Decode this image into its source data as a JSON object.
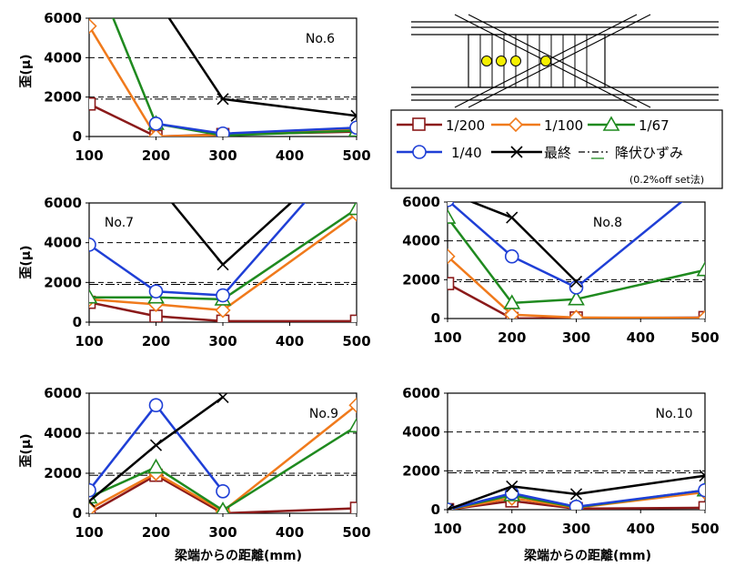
{
  "colors": {
    "s200": "#8b1a1a",
    "s100": "#f07a1c",
    "s67": "#1f8a1f",
    "s40": "#1f3fd6",
    "final": "#000000",
    "yield": "#000000",
    "gauge_fill": "#f5f000"
  },
  "series_labels": [
    "1/200",
    "1/100",
    "1/67",
    "1/40",
    "最終",
    "降伏ひずみ"
  ],
  "legend": {
    "yield_note": "(0.2%off set法)"
  },
  "axis_text": {
    "ylabel": "歪(μ)",
    "xlabel": "梁端からの距離(mm)"
  },
  "chart_data": [
    {
      "type": "line",
      "title": "No.6",
      "x": [
        100,
        200,
        300,
        500
      ],
      "xticks": [
        "100",
        "200",
        "300",
        "400",
        "500"
      ],
      "yticks": [
        "0",
        "2000",
        "4000",
        "6000"
      ],
      "xlim": [
        100,
        500
      ],
      "ylim": [
        0,
        6000
      ],
      "yield_lines": [
        4000,
        2000,
        1900
      ],
      "show_ylabel": true,
      "show_xlabel": false,
      "series": [
        {
          "key": "s200",
          "name": "1/200",
          "values": [
            1650,
            0,
            100,
            250
          ]
        },
        {
          "key": "s100",
          "name": "1/100",
          "values": [
            5600,
            0,
            80,
            350
          ]
        },
        {
          "key": "s67",
          "name": "1/67",
          "values": [
            9000,
            650,
            50,
            300
          ]
        },
        {
          "key": "s40",
          "name": "1/40",
          "values": [
            null,
            650,
            150,
            450
          ]
        },
        {
          "key": "final",
          "name": "最終",
          "values": [
            null,
            7000,
            1900,
            1050
          ]
        }
      ]
    },
    {
      "type": "line",
      "title": "No.7",
      "x": [
        100,
        200,
        300,
        500
      ],
      "xticks": [
        "100",
        "200",
        "300",
        "400",
        "500"
      ],
      "yticks": [
        "0",
        "2000",
        "4000",
        "6000"
      ],
      "xlim": [
        100,
        500
      ],
      "ylim": [
        0,
        6000
      ],
      "yield_lines": [
        4000,
        2000,
        1900
      ],
      "show_ylabel": true,
      "show_xlabel": false,
      "series": [
        {
          "key": "s200",
          "name": "1/200",
          "values": [
            1000,
            300,
            50,
            50
          ]
        },
        {
          "key": "s100",
          "name": "1/100",
          "values": [
            1150,
            900,
            600,
            5450
          ]
        },
        {
          "key": "s67",
          "name": "1/67",
          "values": [
            1250,
            1250,
            1150,
            5700
          ]
        },
        {
          "key": "s40",
          "name": "1/40",
          "values": [
            3900,
            1550,
            1350,
            9000
          ]
        },
        {
          "key": "final",
          "name": "最終",
          "values": [
            null,
            7000,
            2900,
            9000
          ]
        }
      ]
    },
    {
      "type": "line",
      "title": "No.8",
      "x": [
        100,
        200,
        300,
        500
      ],
      "xticks": [
        "100",
        "200",
        "300",
        "400",
        "500"
      ],
      "yticks": [
        "0",
        "2000",
        "4000",
        "6000"
      ],
      "xlim": [
        100,
        500
      ],
      "ylim": [
        0,
        6000
      ],
      "yield_lines": [
        4000,
        2000,
        1900
      ],
      "show_ylabel": false,
      "show_xlabel": false,
      "series": [
        {
          "key": "s200",
          "name": "1/200",
          "values": [
            1800,
            0,
            30,
            50
          ]
        },
        {
          "key": "s100",
          "name": "1/100",
          "values": [
            3200,
            200,
            50,
            30
          ]
        },
        {
          "key": "s67",
          "name": "1/67",
          "values": [
            5200,
            800,
            1000,
            2500
          ]
        },
        {
          "key": "s40",
          "name": "1/40",
          "values": [
            6100,
            3200,
            1600,
            7000
          ]
        },
        {
          "key": "final",
          "name": "最終",
          "values": [
            6500,
            5200,
            1900,
            null
          ]
        }
      ]
    },
    {
      "type": "line",
      "title": "No.9",
      "x": [
        100,
        200,
        300,
        500
      ],
      "xticks": [
        "100",
        "200",
        "300",
        "400",
        "500"
      ],
      "yticks": [
        "0",
        "2000",
        "4000",
        "6000"
      ],
      "xlim": [
        100,
        500
      ],
      "ylim": [
        0,
        6000
      ],
      "yield_lines": [
        4000,
        2000,
        1900
      ],
      "show_ylabel": true,
      "show_xlabel": true,
      "series": [
        {
          "key": "s200",
          "name": "1/200",
          "values": [
            0,
            1900,
            0,
            250
          ]
        },
        {
          "key": "s100",
          "name": "1/100",
          "values": [
            200,
            2000,
            100,
            5400
          ]
        },
        {
          "key": "s67",
          "name": "1/67",
          "values": [
            800,
            2300,
            150,
            4350
          ]
        },
        {
          "key": "s40",
          "name": "1/40",
          "values": [
            1150,
            5400,
            1100,
            null
          ]
        },
        {
          "key": "final",
          "name": "最終",
          "values": [
            600,
            3400,
            5800,
            null
          ]
        }
      ]
    },
    {
      "type": "line",
      "title": "No.10",
      "x": [
        100,
        200,
        300,
        500
      ],
      "xticks": [
        "100",
        "200",
        "300",
        "400",
        "500"
      ],
      "yticks": [
        "0",
        "2000",
        "4000",
        "6000"
      ],
      "xlim": [
        100,
        500
      ],
      "ylim": [
        0,
        6000
      ],
      "yield_lines": [
        4000,
        2000,
        1900
      ],
      "show_ylabel": false,
      "show_xlabel": true,
      "series": [
        {
          "key": "s200",
          "name": "1/200",
          "values": [
            0,
            450,
            50,
            100
          ]
        },
        {
          "key": "s100",
          "name": "1/100",
          "values": [
            0,
            600,
            100,
            900
          ]
        },
        {
          "key": "s67",
          "name": "1/67",
          "values": [
            0,
            750,
            120,
            1000
          ]
        },
        {
          "key": "s40",
          "name": "1/40",
          "values": [
            0,
            850,
            150,
            1000
          ]
        },
        {
          "key": "final",
          "name": "最終",
          "values": [
            0,
            1200,
            800,
            1750
          ]
        }
      ]
    }
  ]
}
